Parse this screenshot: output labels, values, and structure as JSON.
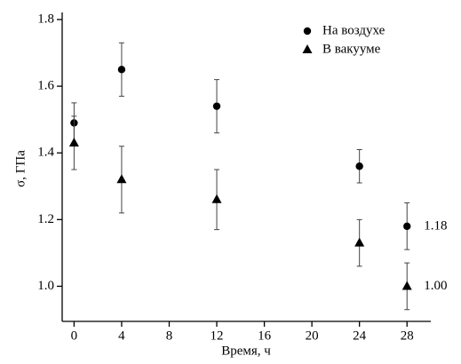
{
  "chart_data": {
    "type": "scatter",
    "x_label": "Время, ч",
    "y_label": "σ, ГПа",
    "xlim": [
      -1,
      30
    ],
    "xticks": [
      0,
      4,
      8,
      12,
      16,
      20,
      24,
      28
    ],
    "ylim": [
      0.9,
      1.8
    ],
    "yticks": [
      {
        "value": 1,
        "label": "1.0"
      },
      1.2,
      1.4,
      1.6,
      1.8
    ],
    "legend": "upper right",
    "series": [
      {
        "name": "На воздухе",
        "marker": "circle",
        "color": "#000000",
        "x": [
          0,
          4,
          12,
          24,
          28
        ],
        "values": [
          1.49,
          1.65,
          1.54,
          1.36,
          1.18
        ],
        "errors": [
          0.06,
          0.08,
          0.08,
          0.05,
          0.07
        ],
        "value_labels": [
          null,
          null,
          null,
          null,
          "1.18"
        ]
      },
      {
        "name": "В вакууме",
        "marker": "triangle",
        "color": "#000000",
        "x": [
          0,
          4,
          12,
          24,
          28
        ],
        "values": [
          1.43,
          1.32,
          1.26,
          1.13,
          1.0
        ],
        "errors": [
          0.08,
          0.1,
          0.09,
          0.07,
          0.07
        ],
        "value_labels": [
          null,
          null,
          null,
          null,
          "1.00"
        ]
      }
    ]
  }
}
